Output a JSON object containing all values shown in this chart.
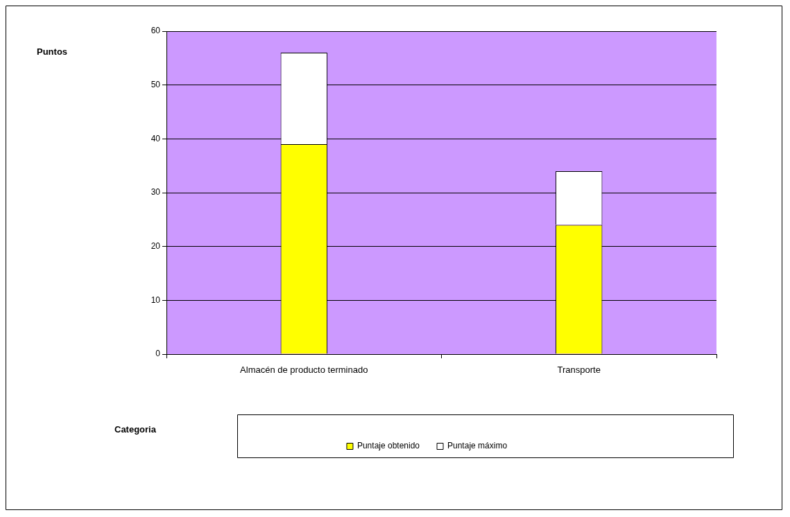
{
  "chart_data": {
    "type": "bar",
    "annotations": [
      "Puntos",
      "Categoria"
    ],
    "categories": [
      "Almacén de producto terminado",
      "Transporte"
    ],
    "series": [
      {
        "name": "Puntaje obtenido",
        "color": "#ffff00",
        "values": [
          39,
          24
        ]
      },
      {
        "name": "Puntaje máximo",
        "color": "#ffffff",
        "values": [
          17,
          10
        ]
      }
    ],
    "stacked": true,
    "ylim": [
      0,
      60
    ],
    "yticks": [
      0,
      10,
      20,
      30,
      40,
      50,
      60
    ],
    "grid": "y",
    "legend": "bottom"
  }
}
